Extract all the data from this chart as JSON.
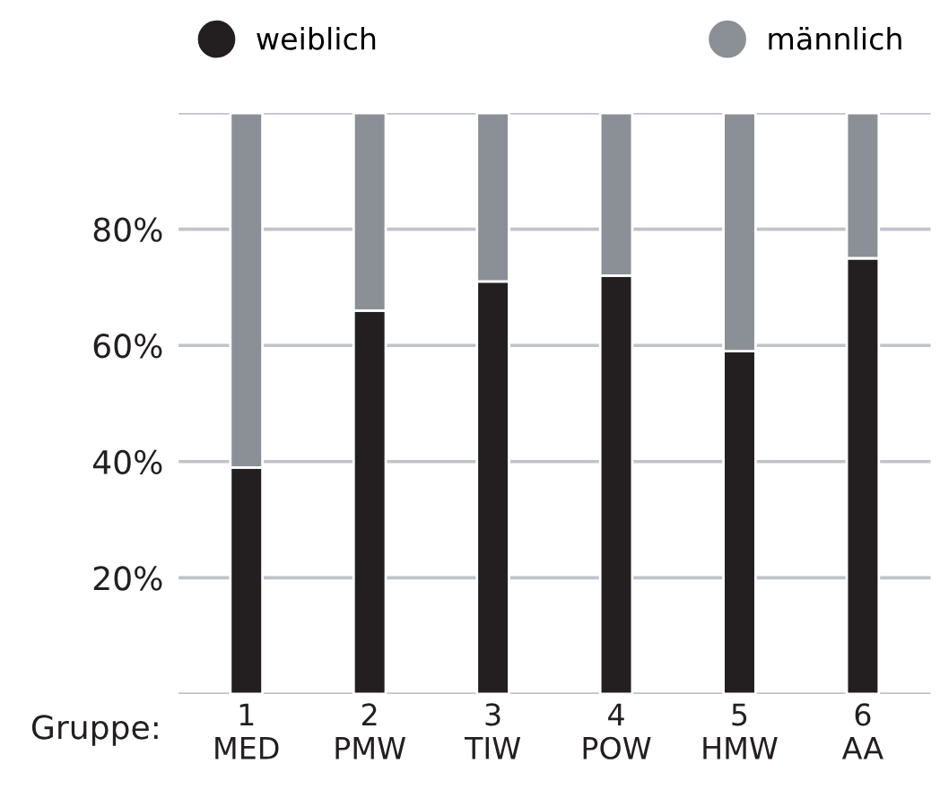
{
  "chart_data": {
    "type": "bar",
    "stacked": true,
    "xlabel": "Gruppe:",
    "categories": [
      "1\nMED",
      "2\nPMW",
      "3\nTIW",
      "4\nPOW",
      "5\nHMW",
      "6\nAA"
    ],
    "series": [
      {
        "name": "weiblich",
        "color": "#231f20",
        "values": [
          39,
          66,
          71,
          72,
          59,
          75
        ]
      },
      {
        "name": "männlich",
        "color": "#8a9096",
        "values": [
          61,
          34,
          29,
          28,
          41,
          25
        ]
      }
    ],
    "ylim": [
      0,
      100
    ],
    "yticks": [
      {
        "value": 0,
        "label": null
      },
      {
        "value": 20,
        "label": "20%"
      },
      {
        "value": 40,
        "label": "40%"
      },
      {
        "value": 60,
        "label": "60%"
      },
      {
        "value": 80,
        "label": "80%"
      },
      {
        "value": 100,
        "label": null
      }
    ],
    "grid": "y",
    "legend": "top"
  }
}
